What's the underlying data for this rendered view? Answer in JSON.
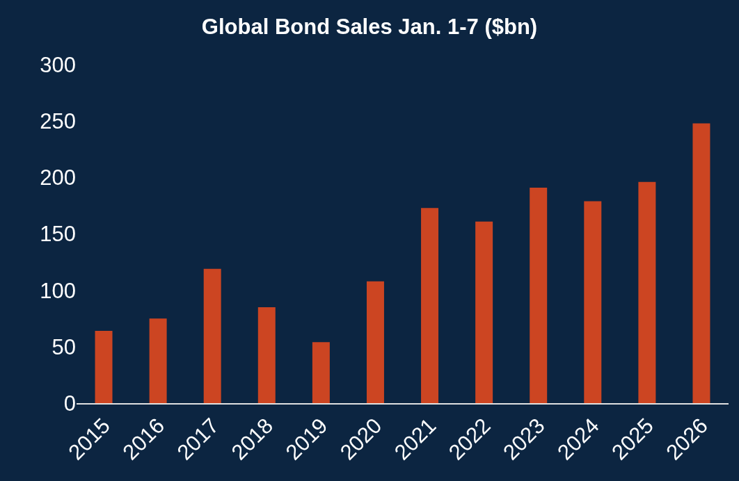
{
  "chart_data": {
    "type": "bar",
    "title": "Global Bond Sales Jan. 1-7 ($bn)",
    "categories": [
      "2015",
      "2016",
      "2017",
      "2018",
      "2019",
      "2020",
      "2021",
      "2022",
      "2023",
      "2024",
      "2025",
      "2026"
    ],
    "values": [
      64,
      75,
      119,
      85,
      54,
      108,
      173,
      161,
      191,
      179,
      196,
      248
    ],
    "color": "#cc4522",
    "ylim": [
      0,
      300
    ],
    "yticks": [
      0,
      50,
      100,
      150,
      200,
      250,
      300
    ],
    "grid": false
  }
}
